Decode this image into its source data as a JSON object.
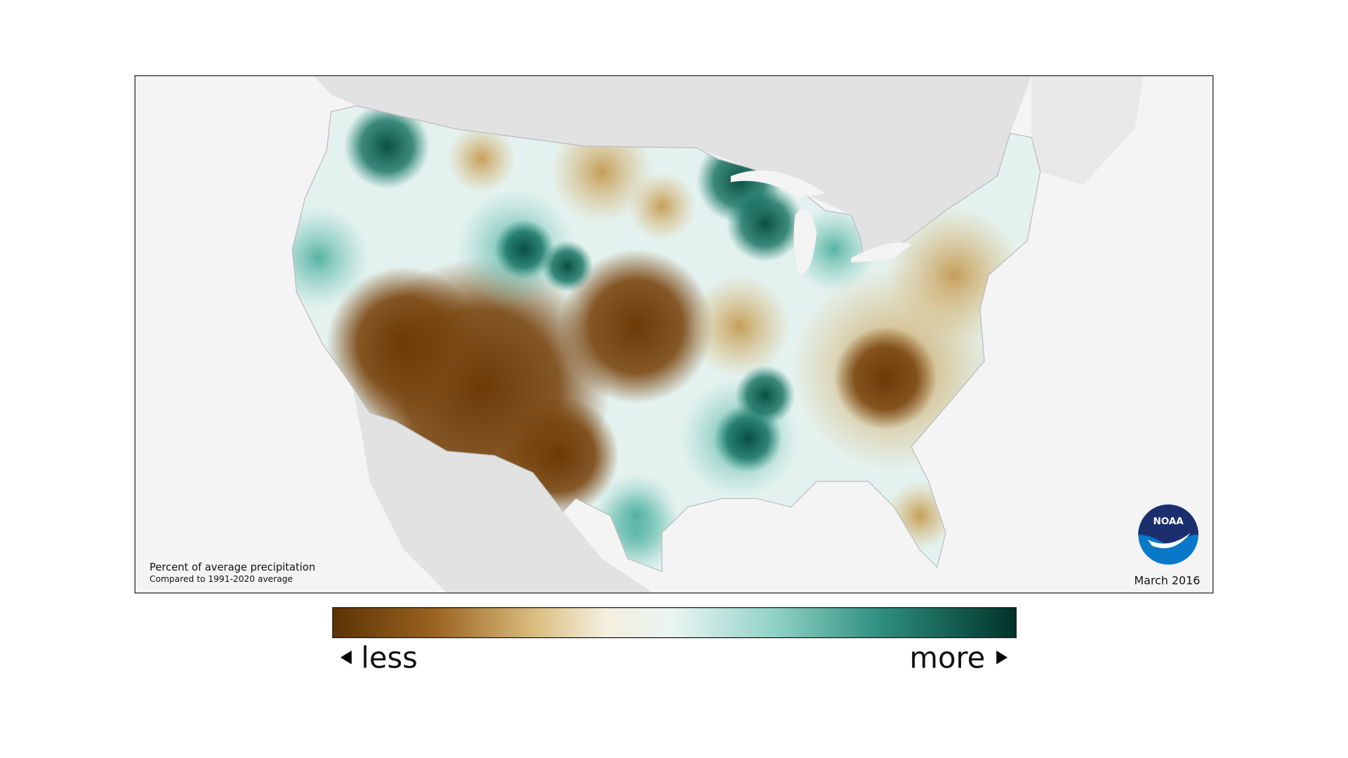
{
  "map": {
    "caption": {
      "title": "Percent of average precipitation",
      "subtitle": "Compared to 1991-2020 average"
    },
    "date": "March 2016",
    "logo": "NOAA",
    "legend": {
      "low": "less",
      "high": "more"
    }
  }
}
